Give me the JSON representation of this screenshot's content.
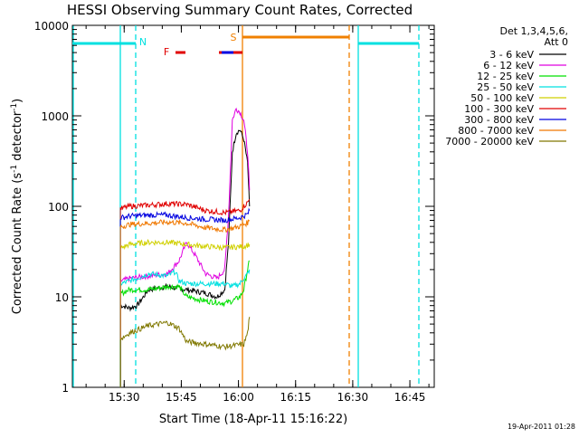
{
  "colors": {
    "background": "#ffffff",
    "axis": "#000000",
    "c3_6": "#000000",
    "c6_12": "#e000e0",
    "c12_25": "#00e000",
    "c25_50": "#00e0e0",
    "c50_100": "#d0d000",
    "c100_300": "#e00000",
    "c300_800": "#0000e0",
    "c800_7000": "#f07800",
    "c7000_20000": "#807800",
    "night_line": "#00e0e0",
    "saa_line": "#f08000",
    "flare_line": "#e00000",
    "flare_bar": "#0000e0"
  },
  "chart_data": {
    "type": "line",
    "title": "HESSI Observing Summary Count Rates, Corrected",
    "xlabel": "Start Time (18-Apr-11 15:16:22)",
    "ylabel": "Corrected Count Rate (s",
    "ylabel_sup1": "-1",
    "ylabel_mid": " detector",
    "ylabel_sup2": "-1",
    "ylabel_end": ")",
    "yscale": "log",
    "ylim": [
      1,
      10000
    ],
    "xlim_minutes": [
      0,
      95
    ],
    "x_tick_labels": [
      "15:30",
      "15:45",
      "16:00",
      "16:15",
      "16:30",
      "16:45"
    ],
    "x_tick_minutes": [
      13.6,
      28.6,
      43.6,
      58.6,
      73.6,
      88.6
    ],
    "y_tick_labels": [
      "1",
      "10",
      "100",
      "1000",
      "10000"
    ],
    "y_tick_values": [
      1,
      10,
      100,
      1000,
      10000
    ],
    "legend_header": [
      "Det 1,3,4,5,6,",
      "Att 0"
    ],
    "legend_placement": "right",
    "series": [
      {
        "name": "3 - 6 keV",
        "color_key": "c3_6",
        "t": [
          12.6,
          13,
          15,
          17,
          20,
          25,
          30,
          35,
          38,
          40,
          41,
          42,
          43,
          44,
          45,
          46,
          46.5
        ],
        "y": [
          8,
          8,
          7.5,
          8,
          12,
          13,
          12,
          11,
          10,
          12,
          40,
          400,
          650,
          700,
          550,
          300,
          100
        ]
      },
      {
        "name": "6 - 12 keV",
        "color_key": "c6_12",
        "t": [
          12.6,
          13,
          15,
          20,
          25,
          28,
          30,
          32,
          35,
          38,
          40,
          41,
          42,
          43,
          44,
          45,
          46,
          46.5
        ],
        "y": [
          15,
          15,
          16,
          17,
          18,
          25,
          40,
          30,
          18,
          16,
          20,
          80,
          900,
          1200,
          1100,
          900,
          400,
          150
        ]
      },
      {
        "name": "12 - 25 keV",
        "color_key": "c12_25",
        "t": [
          12.6,
          13,
          15,
          20,
          25,
          28,
          30,
          35,
          40,
          42,
          44,
          45,
          46,
          46.5
        ],
        "y": [
          11,
          11,
          12,
          12,
          13,
          13,
          10,
          9,
          8.5,
          9,
          10,
          12,
          20,
          25
        ]
      },
      {
        "name": "25 - 50 keV",
        "color_key": "c25_50",
        "t": [
          12.6,
          13,
          15,
          20,
          25,
          27,
          28,
          30,
          35,
          40,
          42,
          44,
          45,
          46,
          46.5
        ],
        "y": [
          14,
          14,
          15,
          18,
          17,
          19,
          15,
          14,
          14,
          14,
          13,
          14,
          16,
          18,
          20
        ]
      },
      {
        "name": "50 - 100 keV",
        "color_key": "c50_100",
        "t": [
          12.6,
          13,
          15,
          20,
          25,
          30,
          35,
          40,
          45,
          46.5
        ],
        "y": [
          35,
          35,
          38,
          40,
          40,
          38,
          36,
          35,
          36,
          38
        ]
      },
      {
        "name": "100 - 300 keV",
        "color_key": "c100_300",
        "t": [
          12.6,
          13,
          15,
          20,
          25,
          30,
          35,
          40,
          44,
          45,
          46,
          46.5
        ],
        "y": [
          95,
          95,
          100,
          103,
          107,
          105,
          90,
          85,
          90,
          100,
          110,
          120
        ]
      },
      {
        "name": "300 - 800 keV",
        "color_key": "c300_800",
        "t": [
          12.6,
          13,
          15,
          20,
          25,
          30,
          35,
          40,
          44,
          46,
          46.5
        ],
        "y": [
          75,
          75,
          78,
          80,
          80,
          75,
          72,
          70,
          75,
          82,
          90
        ]
      },
      {
        "name": "800 - 7000 keV",
        "color_key": "c800_7000",
        "t": [
          12.6,
          13,
          15,
          20,
          25,
          30,
          35,
          40,
          44,
          46,
          46.5
        ],
        "y": [
          60,
          60,
          63,
          65,
          67,
          65,
          58,
          55,
          60,
          66,
          70
        ]
      },
      {
        "name": "7000 - 20000 keV",
        "color_key": "c7000_20000",
        "t": [
          12.6,
          13,
          15,
          20,
          25,
          28,
          30,
          35,
          40,
          45,
          46,
          46.5
        ],
        "y": [
          3.5,
          3.5,
          4,
          4.8,
          5.2,
          4.5,
          3.2,
          3,
          2.8,
          3,
          4,
          6
        ]
      }
    ],
    "night_label": "N",
    "flare_label": "F",
    "saa_label": "S",
    "timestamp": "19-Apr-2011 01:28"
  }
}
